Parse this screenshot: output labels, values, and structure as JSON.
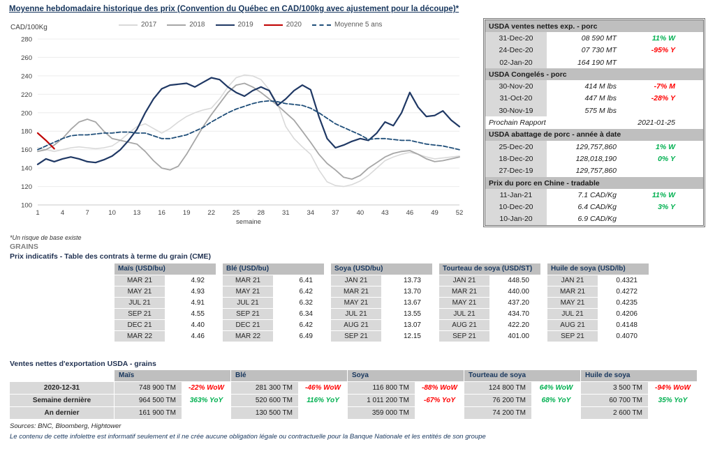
{
  "page": {
    "title": "Moyenne hebdomadaire historique des prix (Convention du Québec en CAD/100kg avec ajustement pour la découpe)*",
    "footnote": "*Un risque de base existe",
    "grains_label": "GRAINS",
    "cme_title": "Prix indicatifs - Table des contrats à terme du grain (CME)",
    "exports_title": "Ventes nettes d'exportation USDA - grains",
    "sources": "Sources: BNC, Bloomberg, Hightower",
    "disclaimer": "Le contenu de cette infolettre est informatif seulement et il ne crée aucune obligation légale ou contractuelle pour la Banque Nationale et les entités de son groupe"
  },
  "colors": {
    "green": "#00b050",
    "red": "#ff0000",
    "navy": "#17365d",
    "header_bg": "#bfbfbf",
    "cell_bg": "#d9d9d9"
  },
  "chart_data": {
    "type": "line",
    "title": "Moyenne hebdomadaire historique des prix (Convention du Québec en CAD/100kg avec ajustement pour la découpe)*",
    "ylabel": "CAD/100Kg",
    "xlabel": "semaine",
    "ylim": [
      100,
      280
    ],
    "yticks": [
      100,
      120,
      140,
      160,
      180,
      200,
      220,
      240,
      260,
      280
    ],
    "xticks": [
      1,
      4,
      7,
      10,
      13,
      16,
      19,
      22,
      25,
      28,
      31,
      34,
      37,
      40,
      43,
      46,
      49,
      52
    ],
    "grid": true,
    "legend_position": "top",
    "series": [
      {
        "name": "2017",
        "color": "#d9d9d9",
        "dash": false,
        "width": 1.6,
        "values": [
          162,
          160,
          158,
          160,
          162,
          163,
          162,
          161,
          162,
          164,
          170,
          178,
          185,
          188,
          183,
          178,
          183,
          190,
          196,
          200,
          203,
          205,
          215,
          228,
          238,
          241,
          240,
          236,
          225,
          210,
          185,
          172,
          163,
          155,
          138,
          125,
          121,
          120,
          122,
          126,
          132,
          140,
          148,
          152,
          155,
          157,
          155,
          152,
          150,
          151,
          152,
          153
        ]
      },
      {
        "name": "2018",
        "color": "#a6a6a6",
        "dash": false,
        "width": 1.8,
        "values": [
          158,
          160,
          165,
          172,
          182,
          190,
          193,
          190,
          180,
          172,
          170,
          168,
          166,
          158,
          148,
          140,
          138,
          142,
          155,
          170,
          185,
          198,
          210,
          222,
          230,
          232,
          228,
          222,
          215,
          208,
          200,
          192,
          180,
          168,
          155,
          145,
          138,
          130,
          128,
          132,
          140,
          146,
          152,
          156,
          158,
          159,
          155,
          150,
          147,
          148,
          150,
          152
        ]
      },
      {
        "name": "2019",
        "color": "#1f3864",
        "dash": false,
        "width": 2.2,
        "values": [
          144,
          150,
          147,
          150,
          152,
          150,
          147,
          146,
          149,
          153,
          160,
          170,
          182,
          200,
          215,
          226,
          230,
          231,
          232,
          228,
          233,
          238,
          236,
          228,
          222,
          218,
          224,
          228,
          224,
          208,
          215,
          224,
          230,
          225,
          196,
          172,
          162,
          165,
          169,
          172,
          170,
          178,
          190,
          186,
          200,
          222,
          206,
          196,
          197,
          202,
          192,
          185
        ]
      },
      {
        "name": "2020",
        "color": "#c00000",
        "dash": false,
        "width": 2.2,
        "values": [
          178,
          170,
          161
        ]
      },
      {
        "name": "Moyenne 5 ans",
        "color": "#1f4e79",
        "dash": true,
        "width": 1.8,
        "values": [
          160,
          164,
          168,
          172,
          175,
          176,
          176,
          177,
          178,
          178,
          179,
          179,
          178,
          178,
          175,
          172,
          172,
          174,
          176,
          180,
          184,
          190,
          195,
          200,
          204,
          207,
          210,
          212,
          213,
          212,
          210,
          209,
          208,
          205,
          200,
          194,
          188,
          184,
          180,
          176,
          171,
          172,
          172,
          171,
          170,
          170,
          168,
          166,
          165,
          164,
          162,
          160
        ]
      }
    ]
  },
  "usda_panel": {
    "rows": [
      {
        "type": "header",
        "text": "USDA ventes nettes exp. - porc"
      },
      {
        "type": "data",
        "date": "31-Dec-20",
        "value": "08 590  MT",
        "change": "11% W",
        "dir": "up"
      },
      {
        "type": "data",
        "date": "24-Dec-20",
        "value": "07 730  MT",
        "change": "-95% Y",
        "dir": "down"
      },
      {
        "type": "data",
        "date": "02-Jan-20",
        "value": "164 190  MT",
        "change": "",
        "dir": ""
      },
      {
        "type": "header",
        "text": "USDA Congelés - porc"
      },
      {
        "type": "data",
        "date": "30-Nov-20",
        "value": "414 M lbs",
        "change": "-7% M",
        "dir": "down"
      },
      {
        "type": "data",
        "date": "31-Oct-20",
        "value": "447 M lbs",
        "change": "-28% Y",
        "dir": "down"
      },
      {
        "type": "data",
        "date": "30-Nov-19",
        "value": "575 M lbs",
        "change": "",
        "dir": ""
      },
      {
        "type": "report",
        "label": "Prochain Rapport",
        "value": "2021-01-25"
      },
      {
        "type": "header",
        "text": "USDA abattage de porc - année à date"
      },
      {
        "type": "data",
        "date": "25-Dec-20",
        "value": "129,757,860",
        "change": "1% W",
        "dir": "up"
      },
      {
        "type": "data",
        "date": "18-Dec-20",
        "value": "128,018,190",
        "change": "0% Y",
        "dir": "up"
      },
      {
        "type": "data",
        "date": "27-Dec-19",
        "value": "129,757,860",
        "change": "",
        "dir": ""
      },
      {
        "type": "header",
        "text": "Prix du porc en Chine - tradable"
      },
      {
        "type": "data",
        "date": "11-Jan-21",
        "value": "7.1 CAD/Kg",
        "change": "11% W",
        "dir": "up"
      },
      {
        "type": "data",
        "date": "10-Dec-20",
        "value": "6.4 CAD/Kg",
        "change": "3% Y",
        "dir": "up"
      },
      {
        "type": "data",
        "date": "10-Jan-20",
        "value": "6.9 CAD/Kg",
        "change": "",
        "dir": ""
      }
    ]
  },
  "cme_tables": [
    {
      "header": "Maïs (USD/bu)",
      "rows": [
        [
          "MAR 21",
          "4.92"
        ],
        [
          "MAY 21",
          "4.93"
        ],
        [
          "JUL 21",
          "4.91"
        ],
        [
          "SEP 21",
          "4.55"
        ],
        [
          "DEC 21",
          "4.40"
        ],
        [
          "MAR 22",
          "4.46"
        ]
      ]
    },
    {
      "header": "Blé (USD/bu)",
      "rows": [
        [
          "MAR 21",
          "6.41"
        ],
        [
          "MAY 21",
          "6.42"
        ],
        [
          "JUL 21",
          "6.32"
        ],
        [
          "SEP 21",
          "6.34"
        ],
        [
          "DEC 21",
          "6.42"
        ],
        [
          "MAR 22",
          "6.49"
        ]
      ]
    },
    {
      "header": "Soya (USD/bu)",
      "rows": [
        [
          "JAN 21",
          "13.73"
        ],
        [
          "MAR 21",
          "13.70"
        ],
        [
          "MAY 21",
          "13.67"
        ],
        [
          "JUL 21",
          "13.55"
        ],
        [
          "AUG 21",
          "13.07"
        ],
        [
          "SEP 21",
          "12.15"
        ]
      ]
    },
    {
      "header": "Tourteau de soya (USD/ST)",
      "rows": [
        [
          "JAN 21",
          "448.50"
        ],
        [
          "MAR 21",
          "440.00"
        ],
        [
          "MAY 21",
          "437.20"
        ],
        [
          "JUL 21",
          "434.70"
        ],
        [
          "AUG 21",
          "422.20"
        ],
        [
          "SEP 21",
          "401.00"
        ]
      ]
    },
    {
      "header": "Huile de soya (USD/lb)",
      "rows": [
        [
          "JAN 21",
          "0.4321"
        ],
        [
          "MAR 21",
          "0.4272"
        ],
        [
          "MAY 21",
          "0.4235"
        ],
        [
          "JUL 21",
          "0.4206"
        ],
        [
          "AUG 21",
          "0.4148"
        ],
        [
          "SEP 21",
          "0.4070"
        ]
      ]
    }
  ],
  "export_table": {
    "columns": [
      "Maïs",
      "Blé",
      "Soya",
      "Tourteau de soya",
      "Huile de soya"
    ],
    "rows": [
      {
        "label": "2020-12-31",
        "cells": [
          {
            "value": "748 900 TM",
            "change": "-22% WoW",
            "dir": "down"
          },
          {
            "value": "281 300 TM",
            "change": "-46% WoW",
            "dir": "down"
          },
          {
            "value": "116 800 TM",
            "change": "-88% WoW",
            "dir": "down"
          },
          {
            "value": "124 800 TM",
            "change": "64% WoW",
            "dir": "up"
          },
          {
            "value": "3 500 TM",
            "change": "-94% WoW",
            "dir": "down"
          }
        ]
      },
      {
        "label": "Semaine dernière",
        "cells": [
          {
            "value": "964 500 TM",
            "change": "363% YoY",
            "dir": "up"
          },
          {
            "value": "520 600 TM",
            "change": "116% YoY",
            "dir": "up"
          },
          {
            "value": "1 011 200 TM",
            "change": "-67% YoY",
            "dir": "down"
          },
          {
            "value": "76 200 TM",
            "change": "68% YoY",
            "dir": "up"
          },
          {
            "value": "60 700 TM",
            "change": "35% YoY",
            "dir": "up"
          }
        ]
      },
      {
        "label": "An dernier",
        "cells": [
          {
            "value": "161 900 TM",
            "change": "",
            "dir": ""
          },
          {
            "value": "130 500 TM",
            "change": "",
            "dir": ""
          },
          {
            "value": "359 000 TM",
            "change": "",
            "dir": ""
          },
          {
            "value": "74 200 TM",
            "change": "",
            "dir": ""
          },
          {
            "value": "2 600 TM",
            "change": "",
            "dir": ""
          }
        ]
      }
    ]
  }
}
